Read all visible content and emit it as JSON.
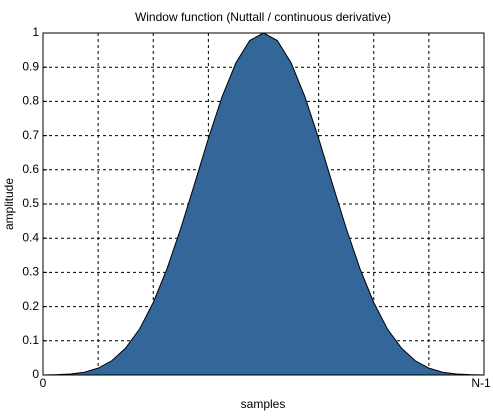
{
  "chart_data": {
    "type": "area",
    "title": "Window function (Nuttall / continuous derivative)",
    "xlabel": "samples",
    "ylabel": "amplitude",
    "x": [
      0,
      1,
      2,
      3,
      4,
      5,
      6,
      7,
      8,
      9,
      10,
      11,
      12,
      13,
      14,
      15,
      16,
      17,
      18,
      19,
      20,
      21,
      22,
      23,
      24,
      25,
      26,
      27,
      28,
      29,
      30,
      31,
      32
    ],
    "values": [
      0,
      0.001,
      0.003,
      0.008,
      0.02,
      0.042,
      0.079,
      0.134,
      0.212,
      0.311,
      0.429,
      0.559,
      0.692,
      0.814,
      0.913,
      0.978,
      1,
      0.978,
      0.913,
      0.814,
      0.692,
      0.559,
      0.429,
      0.311,
      0.212,
      0.134,
      0.079,
      0.042,
      0.02,
      0.008,
      0.003,
      0.001,
      0
    ],
    "color": "#336699",
    "xlim": [
      0,
      32
    ],
    "xticks": [
      0,
      {
        "value": 32,
        "label": "N-1"
      }
    ],
    "xgrid": [
      4,
      8,
      12,
      16,
      20,
      24,
      28
    ],
    "ylim": [
      0,
      1
    ],
    "yticks": [
      0,
      0.1,
      0.2,
      0.3,
      0.4,
      0.5,
      0.6,
      0.7,
      0.8,
      0.9,
      1
    ],
    "grid": true
  }
}
